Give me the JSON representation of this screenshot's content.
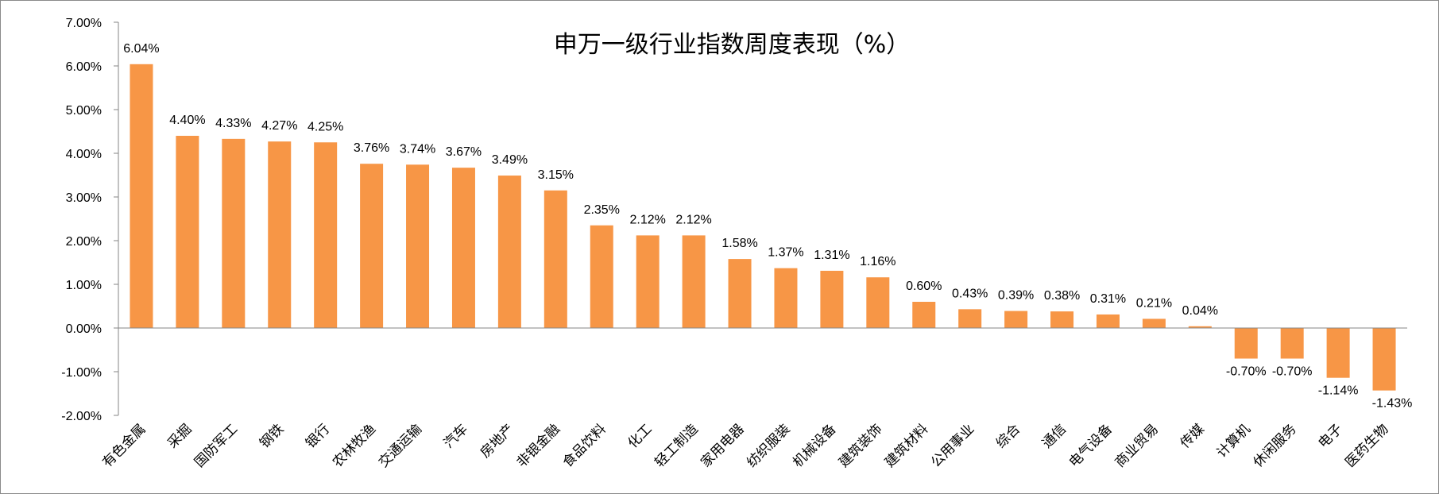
{
  "chart_data": {
    "type": "bar",
    "title": "申万一级行业指数周度表现（%）",
    "xlabel": "",
    "ylabel": "",
    "ylim": [
      -2,
      7
    ],
    "yticks": [
      -2,
      -1,
      0,
      1,
      2,
      3,
      4,
      5,
      6,
      7
    ],
    "ytick_labels": [
      "-2.00%",
      "-1.00%",
      "0.00%",
      "1.00%",
      "2.00%",
      "3.00%",
      "4.00%",
      "5.00%",
      "6.00%",
      "7.00%"
    ],
    "grid": false,
    "legend": "none",
    "bar_color": "#F79646",
    "categories": [
      "有色金属",
      "采掘",
      "国防军工",
      "钢铁",
      "银行",
      "农林牧渔",
      "交通运输",
      "汽车",
      "房地产",
      "非银金融",
      "食品饮料",
      "化工",
      "轻工制造",
      "家用电器",
      "纺织服装",
      "机械设备",
      "建筑装饰",
      "建筑材料",
      "公用事业",
      "综合",
      "通信",
      "电气设备",
      "商业贸易",
      "传媒",
      "计算机",
      "休闲服务",
      "电子",
      "医药生物"
    ],
    "values": [
      6.04,
      4.4,
      4.33,
      4.27,
      4.25,
      3.76,
      3.74,
      3.67,
      3.49,
      3.15,
      2.35,
      2.12,
      2.12,
      1.58,
      1.37,
      1.31,
      1.16,
      0.6,
      0.43,
      0.39,
      0.38,
      0.31,
      0.21,
      0.04,
      -0.7,
      -0.7,
      -1.14,
      -1.43
    ],
    "data_labels": [
      "6.04%",
      "4.40%",
      "4.33%",
      "4.27%",
      "4.25%",
      "3.76%",
      "3.74%",
      "3.67%",
      "3.49%",
      "3.15%",
      "2.35%",
      "2.12%",
      "2.12%",
      "1.58%",
      "1.37%",
      "1.31%",
      "1.16%",
      "0.60%",
      "0.43%",
      "0.39%",
      "0.38%",
      "0.31%",
      "0.21%",
      "0.04%",
      "-0.70%",
      "-0.70%",
      "-1.14%",
      "-1.43%"
    ]
  }
}
